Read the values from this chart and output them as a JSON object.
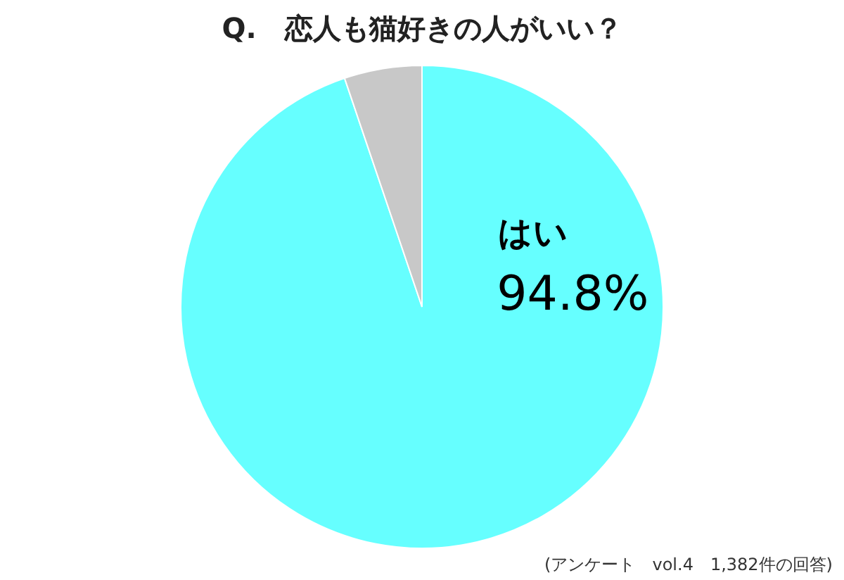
{
  "chart_data": {
    "type": "pie",
    "title": "Q.　恋人も猫好きの人がいい？",
    "categories": [
      "はい",
      null
    ],
    "values": [
      94.8,
      5.2
    ],
    "colors": [
      "#66ffff",
      "#c8c8c8"
    ],
    "value_labels": [
      "94.8%",
      null
    ],
    "legend": false,
    "annotations": [
      "(アンケート　vol.4　1,382件の回答)"
    ]
  }
}
